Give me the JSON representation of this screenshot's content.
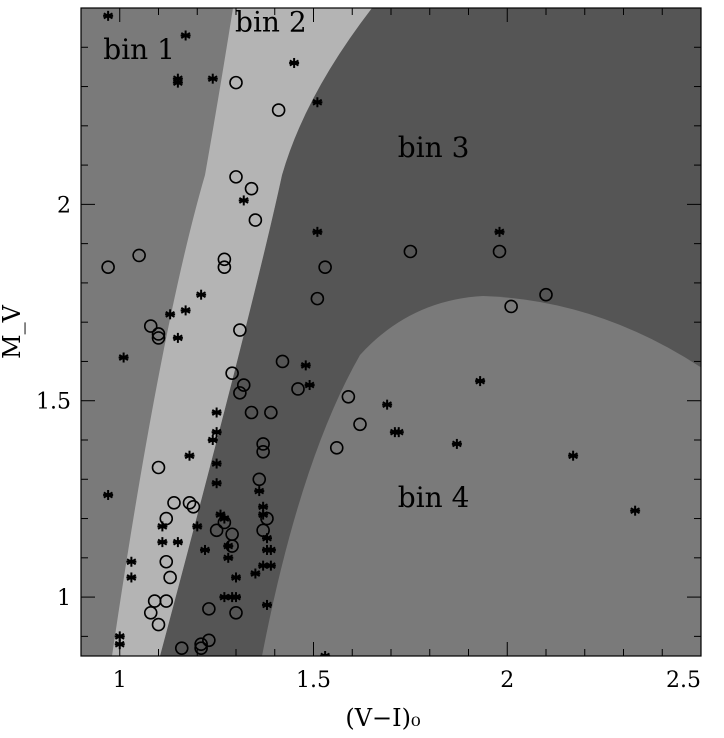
{
  "chart_data": {
    "type": "scatter",
    "xlabel": "(V−I)₀",
    "ylabel": "M_V",
    "xlim": [
      0.9,
      2.5
    ],
    "ylim": [
      2.5,
      0.85
    ],
    "xticks": [
      1,
      1.5,
      2,
      2.5
    ],
    "xtick_labels": [
      "1",
      "1.5",
      "2",
      "2.5"
    ],
    "yticks": [
      1,
      1.5,
      2
    ],
    "ytick_labels": [
      "1",
      "1.5",
      "2"
    ],
    "grid": false,
    "regions": [
      {
        "name": "bin 1",
        "color": "#7a7a7a",
        "label_at": [
          1.05,
          2.37
        ]
      },
      {
        "name": "bin 2",
        "color": "#b4b4b4",
        "label_at": [
          1.39,
          2.44
        ]
      },
      {
        "name": "bin 3",
        "color": "#555555",
        "label_at": [
          1.81,
          2.12
        ]
      },
      {
        "name": "bin 4",
        "color": "#7a7a7a",
        "label_at": [
          1.81,
          1.23
        ]
      }
    ],
    "series": [
      {
        "marker": "open-circle",
        "x": [
          0.97,
          1.05,
          1.08,
          1.1,
          1.1,
          1.1,
          1.12,
          1.14,
          1.18,
          1.19,
          1.12,
          1.13,
          1.1,
          1.08,
          1.09,
          1.12,
          1.16,
          1.21,
          1.21,
          1.23,
          1.23,
          1.3,
          1.3,
          1.27,
          1.27,
          1.34,
          1.35,
          1.41,
          1.31,
          1.29,
          1.31,
          1.32,
          1.34,
          1.39,
          1.37,
          1.37,
          1.36,
          1.38,
          1.37,
          1.29,
          1.25,
          1.27,
          1.29,
          1.3,
          1.42,
          1.46,
          1.51,
          1.53,
          1.59,
          1.62,
          1.75,
          1.98,
          2.01,
          2.1,
          1.56
        ],
        "y": [
          1.84,
          1.87,
          1.69,
          1.67,
          1.66,
          1.33,
          1.2,
          1.24,
          1.24,
          1.23,
          1.09,
          1.05,
          0.93,
          0.96,
          0.99,
          0.99,
          0.87,
          0.87,
          0.88,
          0.89,
          0.97,
          2.31,
          2.07,
          1.86,
          1.84,
          2.04,
          1.96,
          2.24,
          1.68,
          1.57,
          1.52,
          1.54,
          1.47,
          1.47,
          1.39,
          1.37,
          1.3,
          1.2,
          1.17,
          1.16,
          1.17,
          1.19,
          1.13,
          0.96,
          1.6,
          1.53,
          1.76,
          1.84,
          1.51,
          1.44,
          1.88,
          1.88,
          1.74,
          1.77,
          1.38
        ]
      },
      {
        "marker": "asterisk",
        "x": [
          0.97,
          1.17,
          1.15,
          1.15,
          1.24,
          1.45,
          1.51,
          1.51,
          1.98,
          1.32,
          1.21,
          1.17,
          1.13,
          1.15,
          1.01,
          0.97,
          1.03,
          1.15,
          1.11,
          1.11,
          1.2,
          1.18,
          1.25,
          1.25,
          1.24,
          1.25,
          1.25,
          1.26,
          1.27,
          1.22,
          1.28,
          1.28,
          1.3,
          1.3,
          1.27,
          1.29,
          1.36,
          1.37,
          1.37,
          1.38,
          1.38,
          1.39,
          1.39,
          1.37,
          1.35,
          1.38,
          1.48,
          1.49,
          1.53,
          1.69,
          1.71,
          1.72,
          1.87,
          1.93,
          2.17,
          2.33,
          1.03,
          1.0,
          1.0
        ],
        "y": [
          2.48,
          2.43,
          2.31,
          2.32,
          2.32,
          2.36,
          2.26,
          1.93,
          1.93,
          2.01,
          1.77,
          1.73,
          1.72,
          1.66,
          1.61,
          1.26,
          1.09,
          1.14,
          1.14,
          1.18,
          1.18,
          1.36,
          1.47,
          1.42,
          1.4,
          1.34,
          1.29,
          1.21,
          1.2,
          1.12,
          1.13,
          1.1,
          1.05,
          1.0,
          1.0,
          1.0,
          1.27,
          1.23,
          1.21,
          1.15,
          1.12,
          1.12,
          1.08,
          1.08,
          1.06,
          0.98,
          1.59,
          1.54,
          0.85,
          1.49,
          1.42,
          1.42,
          1.39,
          1.55,
          1.36,
          1.22,
          1.05,
          0.88,
          0.9
        ]
      }
    ]
  }
}
